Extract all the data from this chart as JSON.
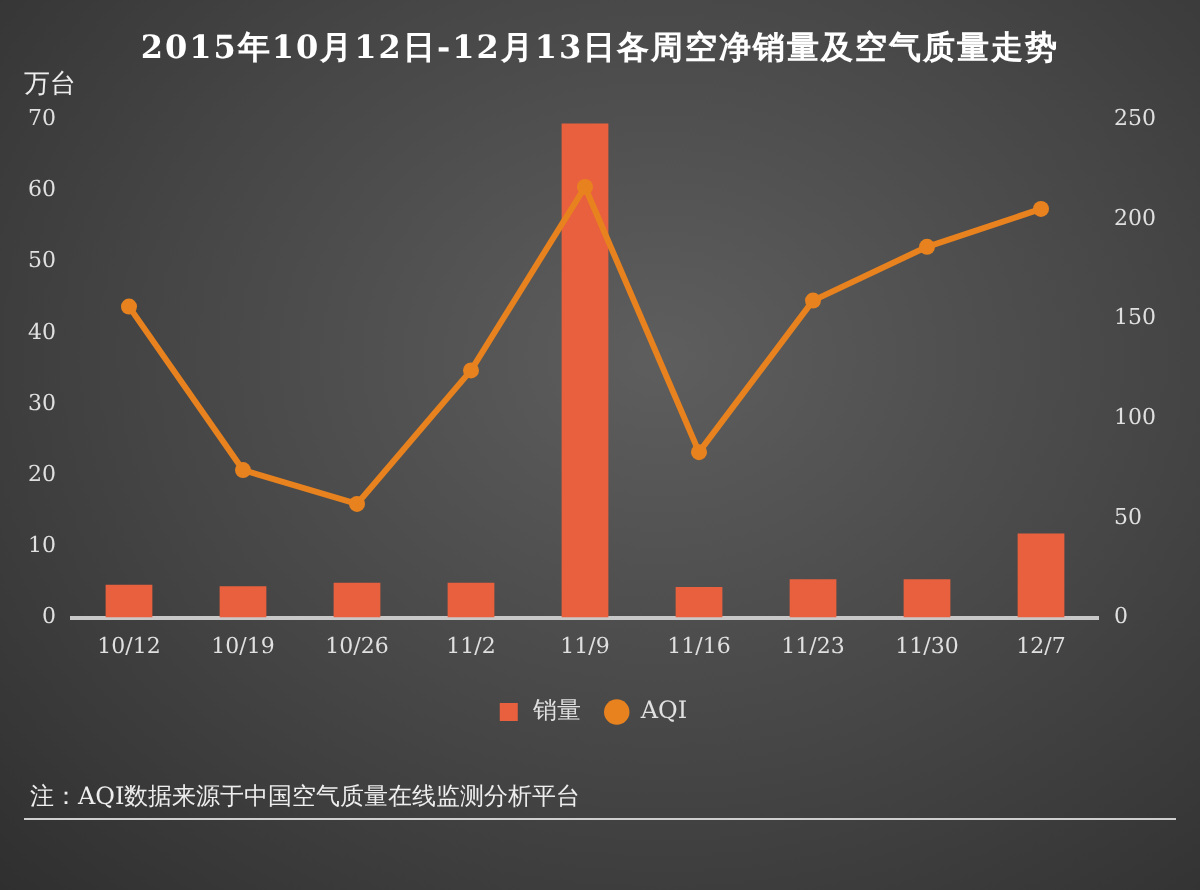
{
  "chart_data": {
    "type": "bar",
    "title": "2015年10月12日-12月13日各周空净销量及空气质量走势",
    "ylabel": "万台",
    "categories": [
      "10/12",
      "10/19",
      "10/26",
      "11/2",
      "11/9",
      "11/16",
      "11/23",
      "11/30",
      "12/7"
    ],
    "series": [
      {
        "name": "销量",
        "color": "#e9603e",
        "values": [
          4.6,
          4.4,
          4.9,
          4.9,
          69.4,
          4.3,
          5.4,
          5.4,
          11.8
        ]
      },
      {
        "name": "AQI",
        "type": "line",
        "axis": "y2",
        "color": "#e8821e",
        "values": [
          156,
          74,
          57,
          124,
          216,
          83,
          159,
          186,
          205
        ]
      }
    ],
    "ylim": [
      0,
      70
    ],
    "yticks": [
      0,
      10,
      20,
      30,
      40,
      50,
      60,
      70
    ],
    "y2lim": [
      0,
      250
    ],
    "y2ticks": [
      0,
      50,
      100,
      150,
      200,
      250
    ],
    "legend": "bottom",
    "marker": "circle",
    "annotations": [
      "注：AQI数据来源于中国空气质量在线监测分析平台"
    ]
  }
}
